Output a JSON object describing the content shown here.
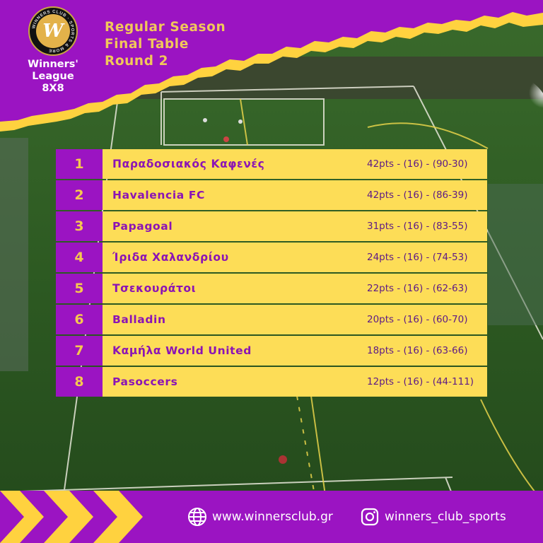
{
  "header": {
    "title_lines": [
      "Regular Season",
      "Final Table",
      "Round 2"
    ],
    "logo": {
      "icon": "winners-club-logo-icon",
      "text": "WINNERS CLUB · SPORTS & MORE",
      "mark": "W"
    },
    "league_lines": [
      "Winners'",
      "League",
      "8X8"
    ]
  },
  "standings": [
    {
      "rank": "1",
      "team": "Παραδοσιακός Καφενές",
      "stats": "42pts - (16) - (90-30)"
    },
    {
      "rank": "2",
      "team": "Havalencia FC",
      "stats": "42pts - (16) - (86-39)"
    },
    {
      "rank": "3",
      "team": "Papagoal",
      "stats": "31pts - (16) - (83-55)"
    },
    {
      "rank": "4",
      "team": "Ίριδα Χαλανδρίου",
      "stats": "24pts - (16) - (74-53)"
    },
    {
      "rank": "5",
      "team": "Τσεκουράτοι",
      "stats": "22pts - (16) - (62-63)"
    },
    {
      "rank": "6",
      "team": "Balladin",
      "stats": "20pts - (16) - (60-70)"
    },
    {
      "rank": "7",
      "team": "Καμήλα World United",
      "stats": "18pts - (16) - (63-66)"
    },
    {
      "rank": "8",
      "team": "Pasoccers",
      "stats": "12pts - (16) - (44-111)"
    }
  ],
  "footer": {
    "website": {
      "icon": "globe-icon",
      "text": "www.winnersclub.gr"
    },
    "instagram": {
      "icon": "instagram-icon",
      "text": "winners_club_sports"
    }
  },
  "colors": {
    "purple": "#9b14c2",
    "yellow": "#fddd57",
    "gold": "#f1c75a",
    "team_text": "#8b14b5",
    "grass": "#2f5a24"
  }
}
